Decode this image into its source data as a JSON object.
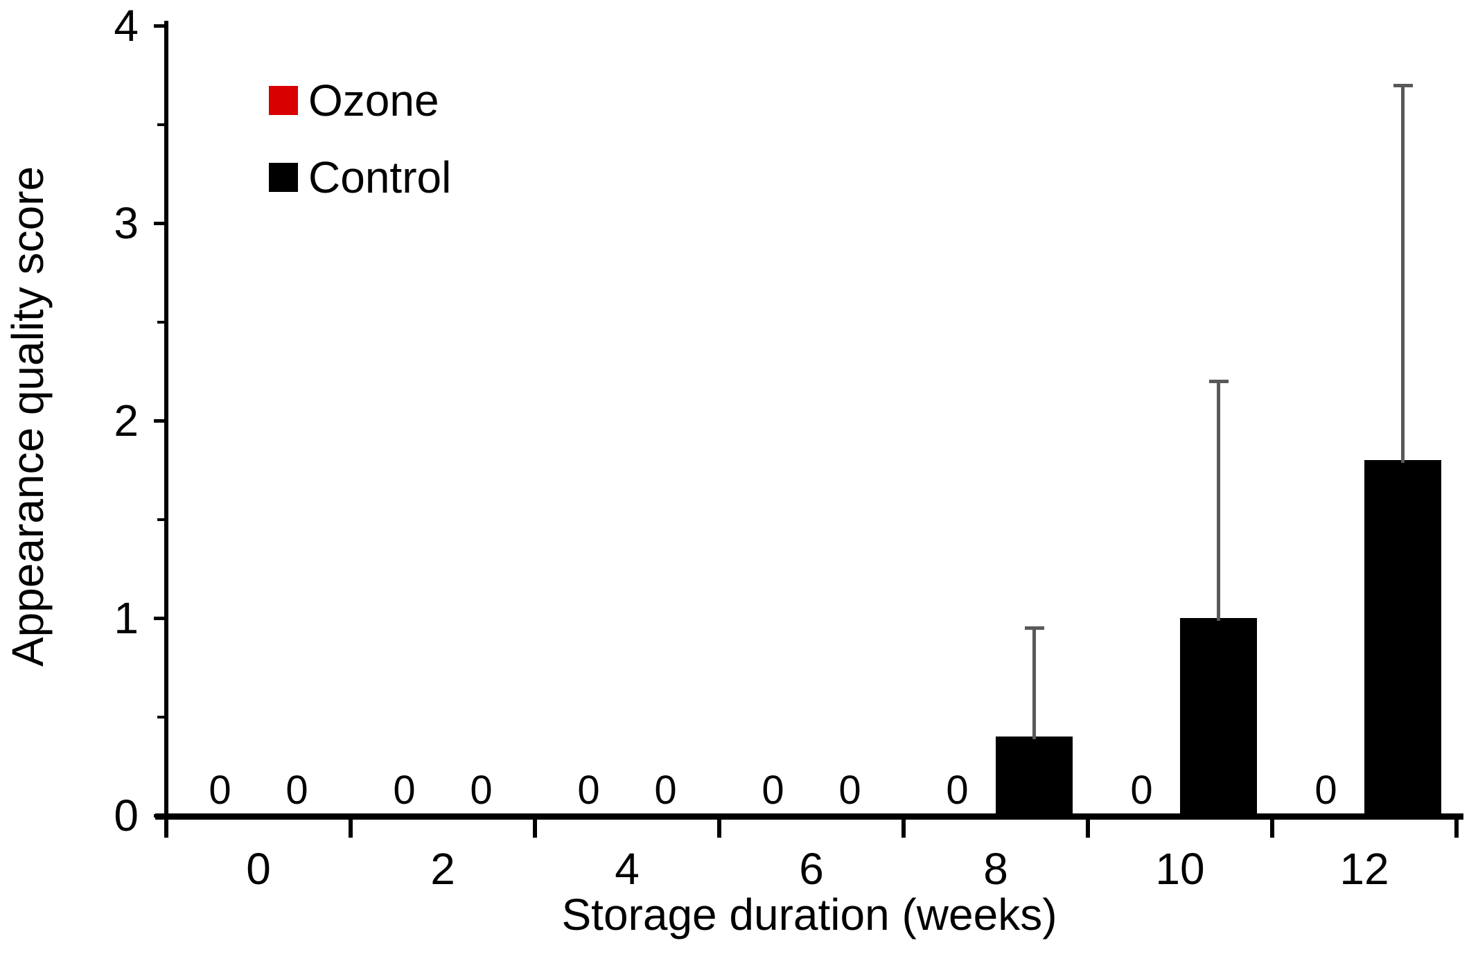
{
  "chart_data": {
    "type": "bar",
    "title": "",
    "xlabel": "Storage duration (weeks)",
    "ylabel": "Appearance quality score",
    "categories": [
      "0",
      "2",
      "4",
      "6",
      "8",
      "10",
      "12"
    ],
    "series": [
      {
        "name": "Ozone",
        "color": "#d80000",
        "values": [
          0,
          0,
          0,
          0,
          0,
          0,
          0
        ],
        "error_plus": [
          0,
          0,
          0,
          0,
          0,
          0,
          0
        ]
      },
      {
        "name": "Control",
        "color": "#000000",
        "values": [
          0,
          0,
          0,
          0,
          0.4,
          1.0,
          1.8
        ],
        "error_plus": [
          0,
          0,
          0,
          0,
          0.55,
          1.2,
          1.9
        ]
      }
    ],
    "ylim": [
      0,
      4
    ],
    "y_major_ticks": [
      "0",
      "1",
      "2",
      "3",
      "4"
    ],
    "y_minor_step": 0.5,
    "grid": false,
    "legend_position": "top-left",
    "error_bar_color": "#595959",
    "axis_color": "#000000",
    "zero_value_label": "0",
    "data_labels_shown_for_zero_values": true
  }
}
